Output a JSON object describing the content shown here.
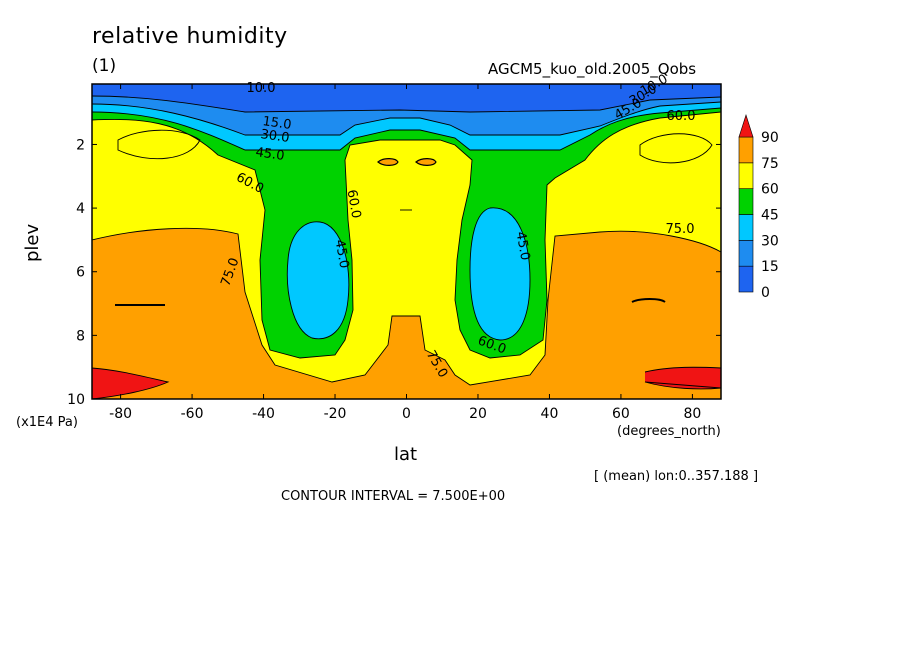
{
  "chart_data": {
    "type": "heatmap",
    "title": "relative humidity",
    "subtitle": "(1)",
    "run_name": "AGCM5_kuo_old.2005_Qobs",
    "xlabel": "lat",
    "xunit": "(degrees_north)",
    "ylabel": "plev",
    "yunit": "(x1E4 Pa)",
    "mean_note": "[ (mean) lon:0..357.188 ]",
    "contour_interval": "CONTOUR INTERVAL = 7.500E+00",
    "xlim": [
      -88,
      88
    ],
    "ylim": [
      10,
      0.1
    ],
    "x_ticks": [
      -80,
      -60,
      -40,
      -20,
      0,
      20,
      40,
      60,
      80
    ],
    "y_ticks": [
      2,
      4,
      6,
      8,
      10
    ],
    "colorbar": {
      "levels": [
        "0",
        "15",
        "30",
        "45",
        "60",
        "75",
        "90"
      ],
      "colors": [
        "#1e64f0",
        "#1e8cf0",
        "#00c8ff",
        "#00d200",
        "#ffff00",
        "#ffa000",
        "#f01414"
      ]
    },
    "contour_labels": [
      "10.0",
      "15.0",
      "30.0",
      "45.0",
      "60.0",
      "60.0",
      "45.0",
      "75.0",
      "60.0",
      "45.0",
      "75.0",
      "75.0",
      "60.0",
      "45.0",
      "30.0",
      "10.0"
    ],
    "regions_description": [
      {
        "value_range": "0-15",
        "where": "top levels (plev < 1)"
      },
      {
        "value_range": "15-45",
        "where": "upper troposphere band, dipping near the poles and in the subtropics"
      },
      {
        "value_range": "30-45",
        "where": "subtropical minima near lat ±25, plev 4.5-7.5"
      },
      {
        "value_range": "60-75",
        "where": "tropics and middle troposphere"
      },
      {
        "value_range": "75-90",
        "where": "lower troposphere, high latitudes"
      },
      {
        "value_range": ">90",
        "where": "polar surface near lat ±80, plev 9-10"
      }
    ]
  }
}
